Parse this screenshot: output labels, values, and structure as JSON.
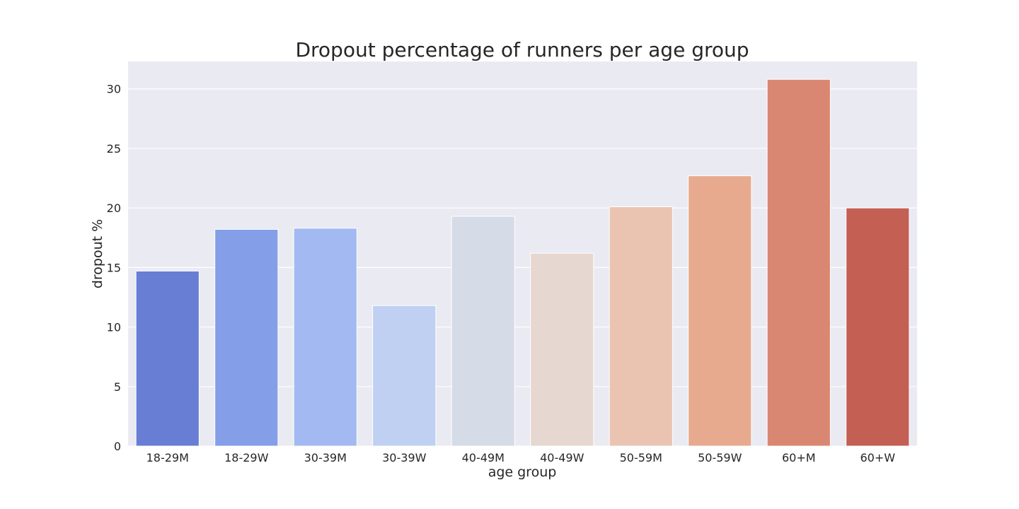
{
  "chart_data": {
    "type": "bar",
    "title": "Dropout percentage of runners per age group",
    "xlabel": "age group",
    "ylabel": "dropout %",
    "categories": [
      "18-29M",
      "18-29W",
      "30-39M",
      "30-39W",
      "40-49M",
      "40-49W",
      "50-59M",
      "50-59W",
      "60+M",
      "60+W"
    ],
    "values": [
      14.7,
      18.2,
      18.3,
      11.8,
      19.3,
      16.2,
      20.1,
      22.7,
      30.8,
      20.0
    ],
    "colors": [
      "#677ed4",
      "#849ee8",
      "#a2b9f2",
      "#bfd0f2",
      "#d5dbe7",
      "#e6d7d0",
      "#ebc4b1",
      "#e7aa8f",
      "#d98672",
      "#c45f53"
    ],
    "ylim": [
      0,
      32.3
    ],
    "yticks": [
      0,
      5,
      10,
      15,
      20,
      25,
      30
    ],
    "grid": true,
    "plot_background": "#eaeaf2",
    "grid_color": "#ffffff"
  }
}
